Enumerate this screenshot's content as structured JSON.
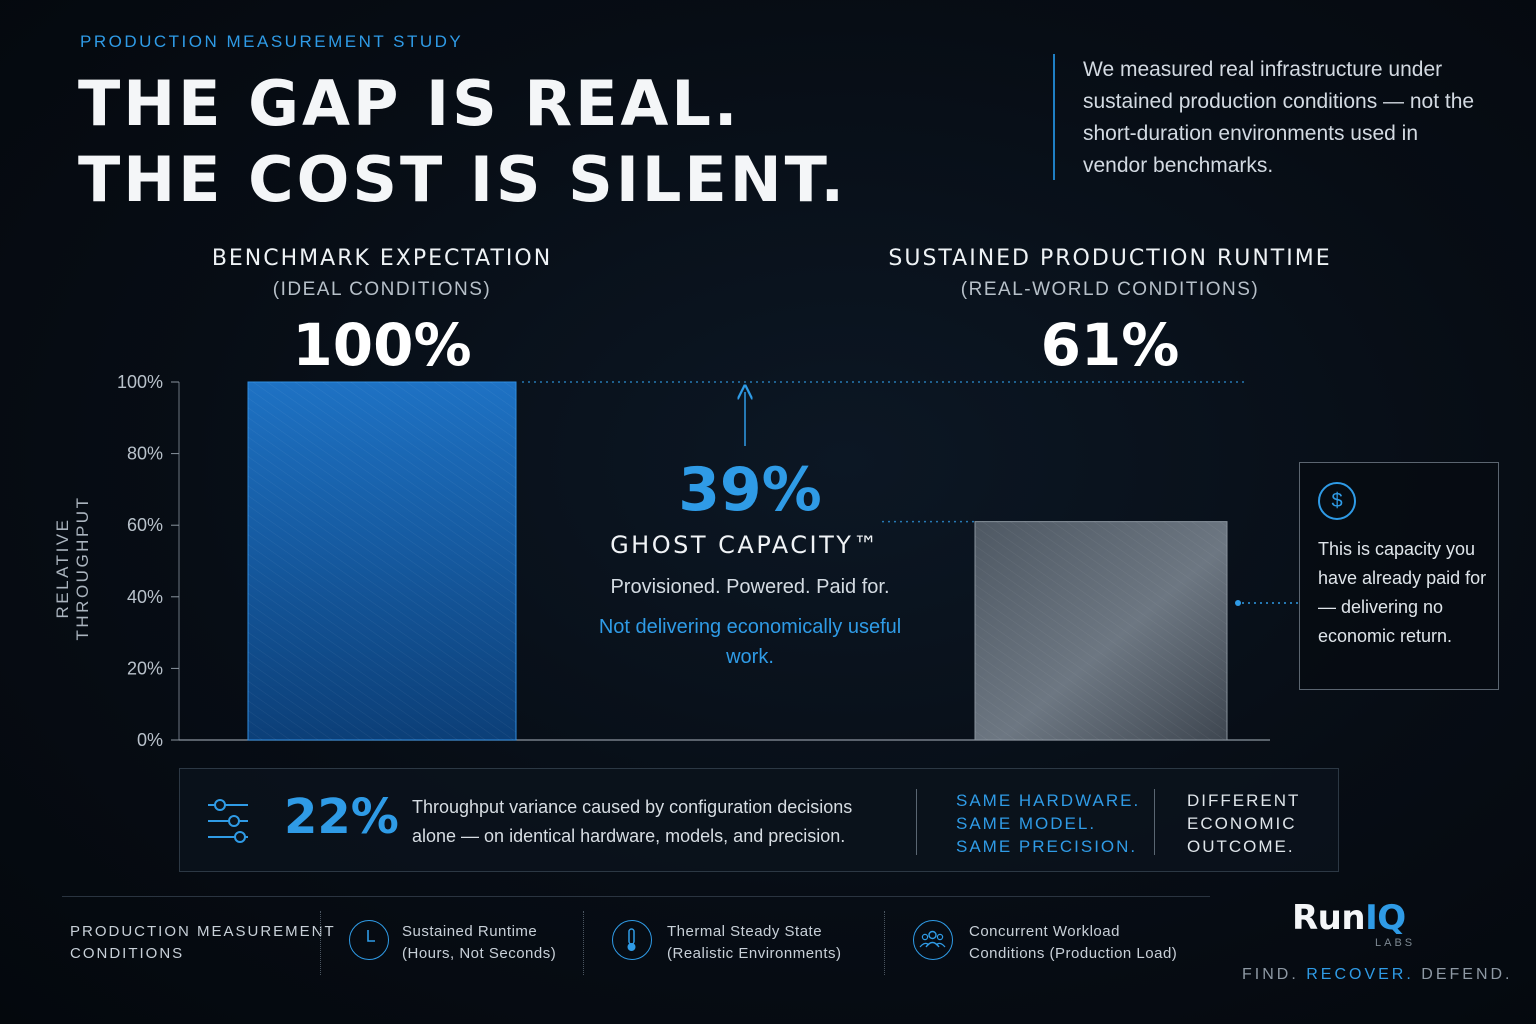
{
  "header": {
    "eyebrow": "PRODUCTION MEASUREMENT STUDY",
    "headline_line1": "THE GAP IS REAL.",
    "headline_line2": "THE COST IS SILENT.",
    "intro": "We measured real infrastructure under sustained production conditions — not the short-duration environments used in vendor benchmarks."
  },
  "columns": {
    "left": {
      "title": "BENCHMARK EXPECTATION",
      "subtitle": "(IDEAL CONDITIONS)",
      "value": "100%"
    },
    "right": {
      "title": "SUSTAINED PRODUCTION RUNTIME",
      "subtitle": "(REAL-WORLD CONDITIONS)",
      "value": "61%"
    }
  },
  "chart_data": {
    "type": "bar",
    "categories": [
      "BENCHMARK EXPECTATION",
      "SUSTAINED PRODUCTION RUNTIME"
    ],
    "values": [
      100,
      61
    ],
    "ylabel": "RELATIVE THROUGHPUT",
    "ylim": [
      0,
      100
    ],
    "yticks": [
      "0%",
      "20%",
      "40%",
      "60%",
      "80%",
      "100%"
    ],
    "grid": false,
    "colors": [
      "#1a66b3",
      "#5c6670"
    ]
  },
  "ghost": {
    "pct": "39%",
    "title": "GHOST CAPACITY™",
    "desc": "Provisioned. Powered. Paid for.",
    "note": "Not delivering economically useful work."
  },
  "callout": {
    "icon": "dollar-icon",
    "text": "This is capacity you have already paid for — delivering no economic return."
  },
  "variance": {
    "icon": "sliders-icon",
    "pct": "22%",
    "desc": "Throughput variance caused by configuration decisions alone — on identical hardware, models, and precision.",
    "same_lines": [
      "SAME HARDWARE.",
      "SAME MODEL.",
      "SAME PRECISION."
    ],
    "diff_lines": [
      "DIFFERENT",
      "ECONOMIC",
      "OUTCOME."
    ]
  },
  "footer": {
    "label_lines": [
      "PRODUCTION MEASUREMENT",
      "CONDITIONS"
    ],
    "conditions": [
      {
        "icon": "clock-icon",
        "line1": "Sustained Runtime",
        "line2": "(Hours, Not Seconds)"
      },
      {
        "icon": "thermometer-icon",
        "line1": "Thermal Steady State",
        "line2": "(Realistic Environments)"
      },
      {
        "icon": "users-icon",
        "line1": "Concurrent Workload",
        "line2": "Conditions (Production Load)"
      }
    ]
  },
  "brand": {
    "name_part1": "Run",
    "name_part2": "IQ",
    "sub": "LABS",
    "tag1": "FIND.",
    "tag2": "RECOVER.",
    "tag3": "DEFEND."
  },
  "colors": {
    "accent": "#2f9be6",
    "background": "#070d15"
  }
}
